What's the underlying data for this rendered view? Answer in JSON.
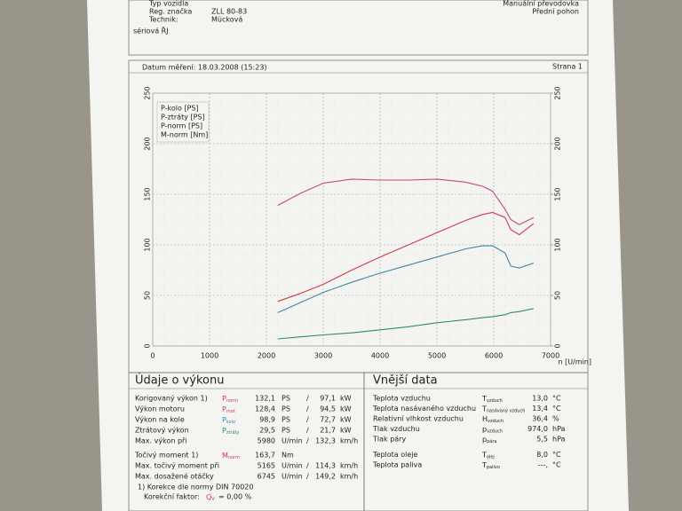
{
  "header": {
    "fields": [
      {
        "label": "Typ vozidla"
      },
      {
        "label": "Reg. značka",
        "value": "ZLL 80-83"
      },
      {
        "label": "Technik:",
        "value": "Mücková"
      }
    ],
    "note": "sériová ŘJ",
    "right": [
      "Manuální převodovka",
      "Přední pohon"
    ]
  },
  "chart_header": {
    "date": "Datum měření: 18.03.2008 (15:23)",
    "page": "Strana 1"
  },
  "chart_data": {
    "type": "line",
    "x_label": "n [U/min]",
    "x": [
      2200,
      2600,
      3000,
      3500,
      4000,
      4500,
      5000,
      5500,
      5800,
      5980,
      6200,
      6300,
      6450,
      6700
    ],
    "xlim": [
      0,
      7000
    ],
    "xticks": [
      0,
      1000,
      2000,
      3000,
      4000,
      5000,
      6000,
      7000
    ],
    "ylim": [
      0,
      250
    ],
    "yticks": [
      0,
      50,
      100,
      150,
      200,
      250
    ],
    "y2lim": [
      0,
      250
    ],
    "y2ticks": [
      0,
      50,
      100,
      150,
      200,
      250
    ],
    "grid": true,
    "legend": "upper left",
    "series": [
      {
        "name": "P-kolo [PS]",
        "color": "#3f86a8",
        "values": [
          33,
          43,
          53,
          63,
          72,
          80,
          88,
          96,
          99,
          99,
          92,
          79,
          77,
          82
        ]
      },
      {
        "name": "P-ztráty [PS]",
        "color": "#2f8f5a",
        "values": [
          7,
          9,
          11,
          13,
          16,
          19,
          23,
          26,
          28,
          29,
          31,
          33,
          34,
          37
        ]
      },
      {
        "name": "P-norm [PS]",
        "color": "#d23a4a",
        "values": [
          44,
          52,
          61,
          75,
          88,
          100,
          112,
          124,
          130,
          132,
          127,
          115,
          110,
          121
        ]
      },
      {
        "name": "M-norm [Nm]",
        "color": "#c04a78",
        "axis": "y2",
        "values": [
          139,
          151,
          161,
          165,
          164,
          164,
          165,
          162,
          158,
          153,
          135,
          125,
          120,
          127
        ]
      }
    ]
  },
  "performance": {
    "title": "Údaje o výkonu",
    "rows": [
      {
        "label": "Korigovaný výkon 1)",
        "sym": "P",
        "sub": "norm",
        "v1": "132,1",
        "u1": "PS",
        "sep": "/",
        "v2": "97,1",
        "u2": "kW",
        "color": "#d23a4a"
      },
      {
        "label": "Výkon motoru",
        "sym": "P",
        "sub": "mot",
        "v1": "128,4",
        "u1": "PS",
        "sep": "/",
        "v2": "94,5",
        "u2": "kW",
        "color": "#d23a4a"
      },
      {
        "label": "Výkon na kole",
        "sym": "P",
        "sub": "kolo",
        "v1": "98,9",
        "u1": "PS",
        "sep": "/",
        "v2": "72,7",
        "u2": "kW",
        "color": "#3f86a8"
      },
      {
        "label": "Ztrátový výkon",
        "sym": "P",
        "sub": "ztráty",
        "v1": "29,5",
        "u1": "PS",
        "sep": "/",
        "v2": "21,7",
        "u2": "kW",
        "color": "#2f8f5a"
      },
      {
        "label": "Max. výkon při",
        "v1": "5980",
        "u1": "U/min",
        "sep": "/",
        "v2": "132,3",
        "u2": "km/h",
        "color": "#222"
      },
      {
        "label": "Točivý moment 1)",
        "sym": "M",
        "sub": "norm",
        "v1": "163,7",
        "u1": "Nm",
        "color": "#d23a4a"
      },
      {
        "label": "Max. točivý moment při",
        "v1": "5165",
        "u1": "U/min",
        "sep": "/",
        "v2": "114,3",
        "u2": "km/h",
        "color": "#222"
      },
      {
        "label": "Max. dosažené otáčky",
        "v1": "6745",
        "u1": "U/min",
        "sep": "/",
        "v2": "149,2",
        "u2": "km/h",
        "color": "#222"
      }
    ],
    "footnote": {
      "line1": "1) Korekce dle normy DIN 70020",
      "factor_label": "Korekční faktor:",
      "sym": "Q",
      "sub": "V",
      "value": "= 0,00 %"
    }
  },
  "external": {
    "title": "Vnější data",
    "rows": [
      {
        "label": "Teplota vzduchu",
        "sym": "T",
        "sub": "vzduch",
        "v": "13,0",
        "u": "°C"
      },
      {
        "label": "Teplota nasávaného vzduchu",
        "sym": "T",
        "sub": "nasávaný vzduch",
        "v": "13,4",
        "u": "°C"
      },
      {
        "label": "Relativní vlhkost vzduchu",
        "sym": "H",
        "sub": "vzduch",
        "v": "36,4",
        "u": "%"
      },
      {
        "label": "Tlak vzduchu",
        "sym": "p",
        "sub": "vzduch",
        "v": "974,0",
        "u": "hPa"
      },
      {
        "label": "Tlak páry",
        "sym": "p",
        "sub": "pára",
        "v": "5,5",
        "u": "hPa"
      },
      {
        "label": "Teplota oleje",
        "sym": "T",
        "sub": "olej",
        "v": "8,0",
        "u": "°C"
      },
      {
        "label": "Teplota paliva",
        "sym": "T",
        "sub": "palivo",
        "v": "---,",
        "u": "°C"
      }
    ]
  }
}
